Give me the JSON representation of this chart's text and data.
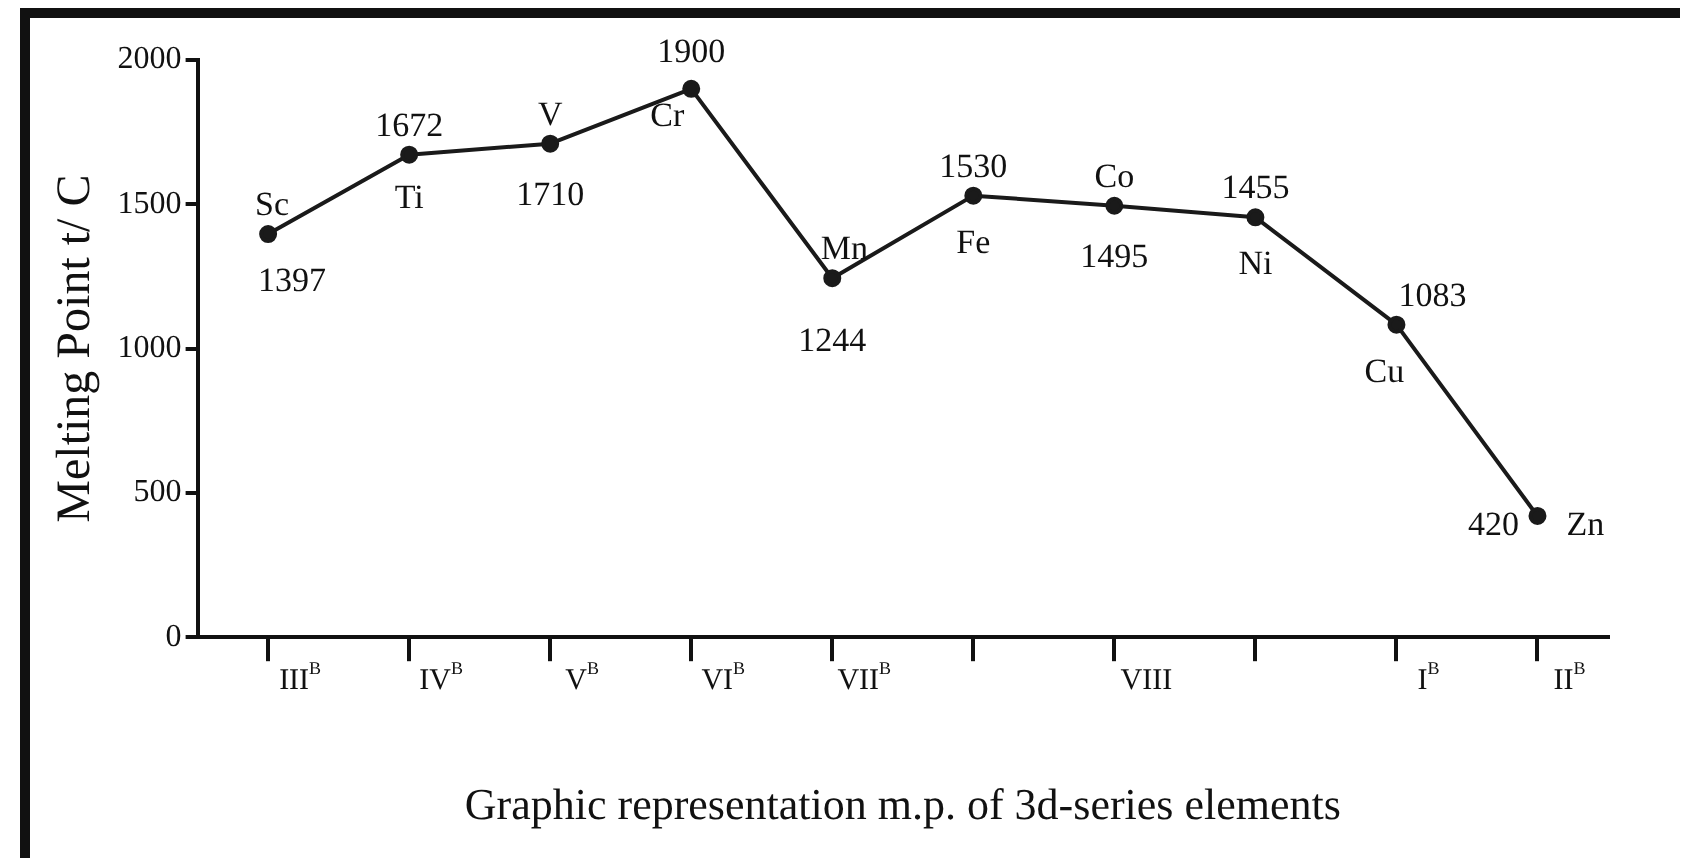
{
  "chart_data": {
    "type": "line",
    "xlabel": "Graphic representation m.p. of 3d-series elements",
    "ylabel": "Melting Point t/ C",
    "categories": [
      "III$^{B}$",
      "IV$^{B}$",
      "V$^{B}$",
      "VI$^{B}$",
      "VII$^{B}$",
      null,
      "VIII",
      null,
      "I$^{B}$",
      "II$^{B}$"
    ],
    "series": [
      {
        "color": "#1a1a1a",
        "values": [
          1397,
          1672,
          1710,
          1900,
          1244,
          1530,
          1495,
          1455,
          1083,
          420
        ]
      }
    ],
    "ylim": [
      0,
      2000
    ],
    "yticks": [
      0,
      500,
      1000,
      1500,
      2000
    ],
    "grid": false,
    "legend": false,
    "marker": "circle",
    "line_style": "solid",
    "data_labels": true,
    "annotations": [
      "Sc",
      "Ti",
      "V",
      "Cr",
      "Mn",
      "Fe",
      "Co",
      "Ni",
      "Cu",
      "Zn"
    ]
  }
}
